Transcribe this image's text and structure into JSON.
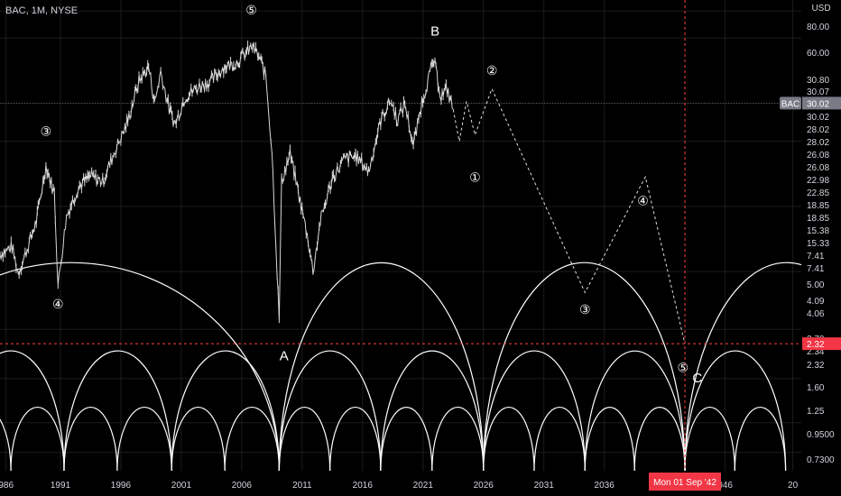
{
  "header": {
    "symbol_title": "BAC, 1M, NYSE"
  },
  "chart_data": {
    "type": "line",
    "title": "BAC, 1M, NYSE",
    "currency": "USD",
    "y_scale": "log",
    "ylim": [
      0.6,
      90
    ],
    "xlim": [
      1986,
      2052.3
    ],
    "y_ticks": [
      "80.00",
      "60.00",
      "30.80",
      "30.07",
      "30.07",
      "30.02",
      "28.02",
      "28.02",
      "26.08",
      "26.08",
      "22.98",
      "22.85",
      "18.85",
      "18.85",
      "15.38",
      "15.33",
      "7.41",
      "7.41",
      "5.00",
      "4.09",
      "4.06",
      "2.70",
      "2.34",
      "2.32",
      "1.60",
      "1.25",
      "0.9500",
      "0.7300"
    ],
    "x_ticks": [
      "986",
      "1991",
      "1996",
      "2001",
      "2006",
      "2011",
      "2016",
      "2021",
      "2026",
      "2031",
      "2036",
      "046",
      "20"
    ],
    "crosshair": {
      "x_label": "Mon 01 Sep '42",
      "y_label": "2.32",
      "x": 2042.67,
      "y": 2.32
    },
    "last_price": {
      "label": "BAC",
      "value": "30.02"
    },
    "series": [
      {
        "values_monthly_approx": [
          [
            1986,
            6.0
          ],
          [
            1987,
            6.5
          ],
          [
            1987.5,
            4.9
          ],
          [
            1988,
            5.8
          ],
          [
            1989,
            8.5
          ],
          [
            1989.8,
            15.4
          ],
          [
            1990.5,
            11.4
          ],
          [
            1990.8,
            4.3
          ],
          [
            1991.5,
            9.0
          ],
          [
            1992.5,
            12.3
          ],
          [
            1993.5,
            13.8
          ],
          [
            1994.5,
            13.0
          ],
          [
            1995.5,
            18.0
          ],
          [
            1996.5,
            24.0
          ],
          [
            1997.5,
            38.0
          ],
          [
            1998.3,
            44.0
          ],
          [
            1998.8,
            30.0
          ],
          [
            1999.3,
            42.0
          ],
          [
            2000.0,
            28.0
          ],
          [
            2000.5,
            24.0
          ],
          [
            2001.3,
            32.0
          ],
          [
            2002.5,
            36.0
          ],
          [
            2003.5,
            38.0
          ],
          [
            2004.5,
            44.0
          ],
          [
            2005.5,
            46.0
          ],
          [
            2006.5,
            52.0
          ],
          [
            2006.9,
            55.0
          ],
          [
            2007.5,
            48.0
          ],
          [
            2008.0,
            40.0
          ],
          [
            2008.5,
            18.0
          ],
          [
            2009.1,
            3.0
          ],
          [
            2009.3,
            13.0
          ],
          [
            2010.0,
            17.5
          ],
          [
            2010.5,
            13.0
          ],
          [
            2011.5,
            7.0
          ],
          [
            2011.9,
            5.0
          ],
          [
            2012.5,
            8.5
          ],
          [
            2013.5,
            13.5
          ],
          [
            2014.5,
            16.5
          ],
          [
            2015.5,
            17.0
          ],
          [
            2016.5,
            14.5
          ],
          [
            2017.5,
            25.0
          ],
          [
            2018.3,
            31.0
          ],
          [
            2018.9,
            25.0
          ],
          [
            2019.5,
            30.0
          ],
          [
            2020.2,
            19.0
          ],
          [
            2020.9,
            30.0
          ],
          [
            2021.5,
            40.0
          ],
          [
            2021.9,
            47.0
          ],
          [
            2022.5,
            32.0
          ],
          [
            2023.0,
            35.0
          ],
          [
            2023.5,
            28.0
          ]
        ]
      }
    ],
    "projection": {
      "points": [
        [
          2023.5,
          28
        ],
        [
          2024.0,
          20
        ],
        [
          2024.6,
          30.6
        ],
        [
          2025.3,
          21.4
        ],
        [
          2026.7,
          35
        ],
        [
          2034.4,
          4.0
        ],
        [
          2039.4,
          13.7
        ],
        [
          2042.67,
          2.32
        ]
      ],
      "style": "dashed"
    },
    "annotations": [
      {
        "text": "⑤",
        "x": 2006.8,
        "y": 80
      },
      {
        "text": "B",
        "x": 2022.0,
        "y": 64
      },
      {
        "text": "②",
        "x": 2026.7,
        "y": 42
      },
      {
        "text": "③",
        "x": 1989.8,
        "y": 22
      },
      {
        "text": "①",
        "x": 2025.3,
        "y": 13.5
      },
      {
        "text": "④",
        "x": 1990.8,
        "y": 3.5
      },
      {
        "text": "④",
        "x": 2039.2,
        "y": 10.5
      },
      {
        "text": "③",
        "x": 2034.4,
        "y": 3.3
      },
      {
        "text": "A",
        "x": 2009.5,
        "y": 2.02
      },
      {
        "text": "⑤",
        "x": 2042.5,
        "y": 1.78
      },
      {
        "text": "C",
        "x": 2043.7,
        "y": 1.6
      }
    ],
    "arcs": {
      "large": [
        [
          1974.6,
          2009.1,
          5.5
        ],
        [
          2009.1,
          2026.0,
          5.5
        ],
        [
          2026.0,
          2042.67,
          5.5
        ],
        [
          2042.67,
          2059.5,
          5.5
        ]
      ],
      "medium": [
        [
          1982.5,
          1991.3,
          2.15
        ],
        [
          1991.3,
          2000.2,
          2.15
        ],
        [
          2000.2,
          2009.1,
          2.15
        ],
        [
          2009.1,
          2017.5,
          2.15
        ],
        [
          2017.5,
          2026.0,
          2.15
        ],
        [
          2026.0,
          2034.4,
          2.15
        ],
        [
          2034.4,
          2042.67,
          2.15
        ],
        [
          2042.67,
          2051.0,
          2.15
        ]
      ],
      "small": [
        [
          1982.5,
          1986.9,
          1.18
        ],
        [
          1986.9,
          1991.3,
          1.18
        ],
        [
          1991.3,
          1995.7,
          1.18
        ],
        [
          1995.7,
          2000.2,
          1.18
        ],
        [
          2000.2,
          2004.6,
          1.18
        ],
        [
          2004.6,
          2009.1,
          1.18
        ],
        [
          2009.1,
          2013.3,
          1.18
        ],
        [
          2013.3,
          2017.5,
          1.18
        ],
        [
          2017.5,
          2021.75,
          1.18
        ],
        [
          2021.75,
          2026.0,
          1.18
        ],
        [
          2026.0,
          2030.2,
          1.18
        ],
        [
          2030.2,
          2034.4,
          1.18
        ],
        [
          2034.4,
          2038.5,
          1.18
        ],
        [
          2038.5,
          2042.67,
          1.18
        ],
        [
          2042.67,
          2046.8,
          1.18
        ],
        [
          2046.8,
          2051.0,
          1.18
        ]
      ]
    },
    "grid": true,
    "colors": {
      "background": "#000000",
      "price": "#d9d9d9",
      "arcs": "#ffffff",
      "crosshair": "#ff4040",
      "axis_text": "#d1d4dc",
      "last_price_bg": "#787b86",
      "crosshair_label_bg": "#f23645"
    }
  }
}
